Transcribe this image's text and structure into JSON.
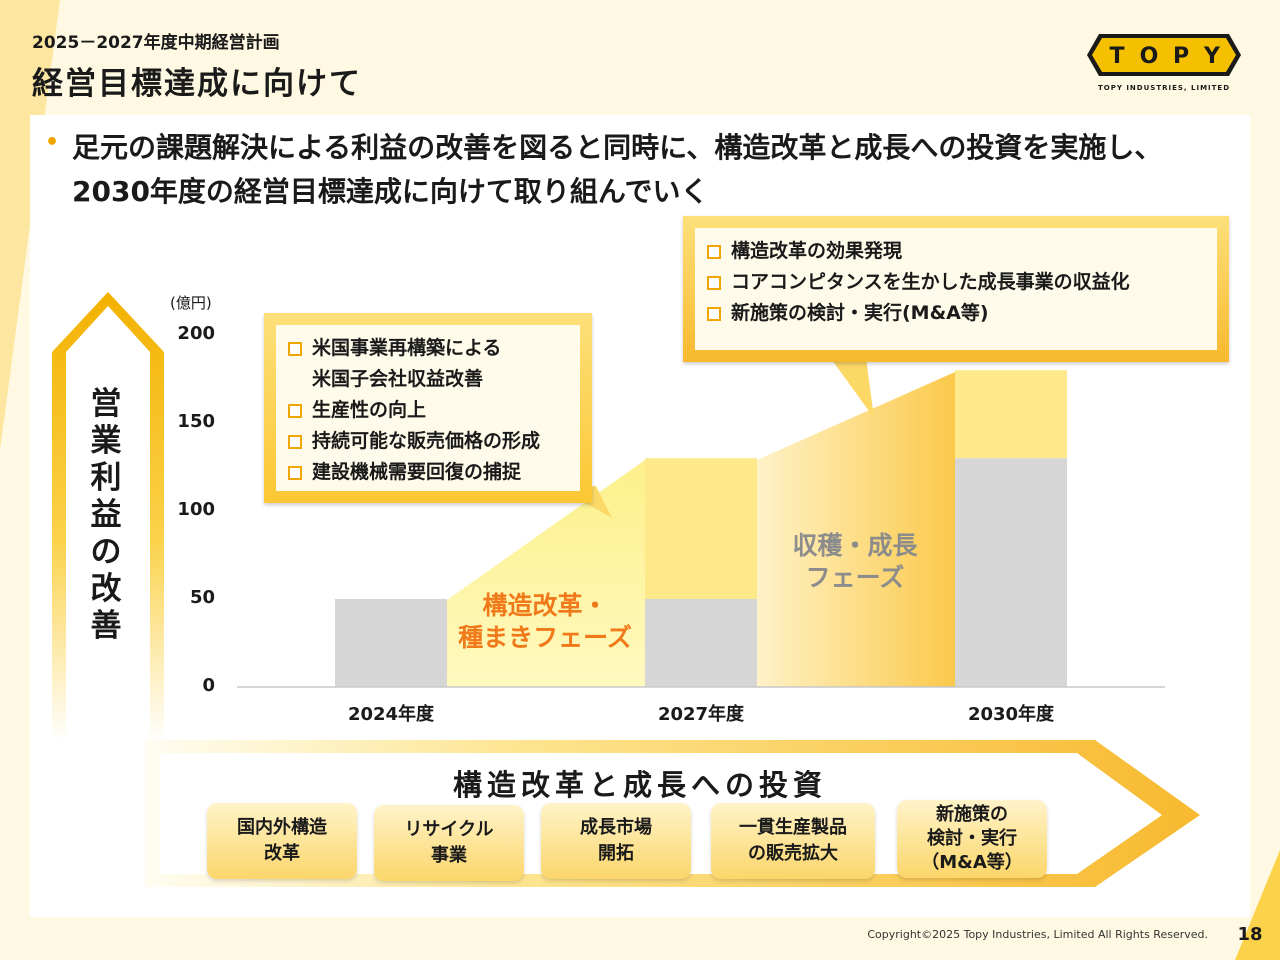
{
  "header": {
    "subtitle": "2025－2027年度中期経営計画",
    "title": "経営目標達成に向けて"
  },
  "logo": {
    "text": "TOPY",
    "tagline": "TOPY INDUSTRIES, LIMITED"
  },
  "lead": "足元の課題解決による利益の改善を図ると同時に、構造改革と成長への投資を実施し、2030年度の経営目標達成に向けて取り組んでいく",
  "side_label": "営業利益の改善",
  "chart_data": {
    "type": "bar",
    "unit": "(億円)",
    "categories": [
      "2024年度",
      "2027年度",
      "2030年度"
    ],
    "series": [
      {
        "values": [
          50,
          50,
          130
        ],
        "color": "#d6d6d6"
      },
      {
        "values": [
          0,
          80,
          50
        ],
        "color": "#fde98a"
      }
    ],
    "ylim": [
      0,
      200
    ],
    "yticks": [
      0,
      50,
      100,
      150,
      200
    ],
    "grid": false
  },
  "phases": {
    "phase1": "構造改革・\n種まきフェーズ",
    "phase2": "収穫・成長\nフェーズ"
  },
  "callouts": {
    "left": [
      "米国事業再構築による\n米国子会社収益改善",
      "生産性の向上",
      "持続可能な販売価格の形成",
      "建設機械需要回復の捕捉"
    ],
    "right": [
      "構造改革の効果発現",
      "コアコンピタンスを生かした成長事業の収益化",
      "新施策の検討・実行(M&A等)"
    ]
  },
  "investment": {
    "title": "構造改革と成長への投資",
    "items": [
      "国内外構造\n改革",
      "リサイクル\n事業",
      "成長市場\n開拓",
      "一貫生産製品\nの販売拡大",
      "新施策の\n検討・実行\n（M&A等）"
    ]
  },
  "colors": {
    "accent": "#f0a500",
    "phase1": "#f07a1a",
    "phase2": "#8c8c8c"
  },
  "footer": {
    "copyright": "Copyright©2025 Topy Industries, Limited All Rights Reserved.",
    "page": "18"
  }
}
